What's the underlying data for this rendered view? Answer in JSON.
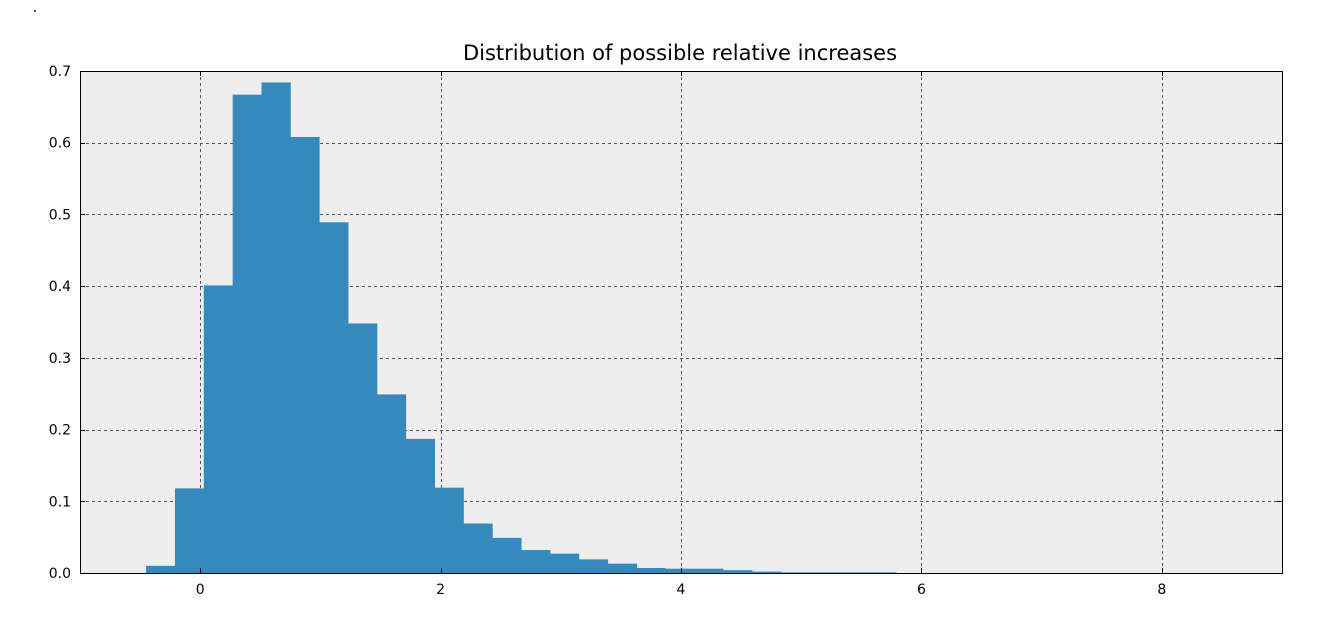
{
  "chart_data": {
    "type": "bar",
    "title": "Distribution of possible relative increases",
    "xlabel": "",
    "ylabel": "",
    "xlim": [
      -1,
      9
    ],
    "ylim": [
      0,
      0.7
    ],
    "xticks": [
      0,
      2,
      4,
      6,
      8
    ],
    "xtick_labels": [
      "0",
      "2",
      "4",
      "6",
      "8"
    ],
    "yticks": [
      0.0,
      0.1,
      0.2,
      0.3,
      0.4,
      0.5,
      0.6,
      0.7
    ],
    "ytick_labels": [
      "0.0",
      "0.1",
      "0.2",
      "0.3",
      "0.4",
      "0.5",
      "0.6",
      "0.7"
    ],
    "grid": true,
    "bar_color": "#348abd",
    "background_color": "#eeeeee",
    "bin_edges": [
      -0.45,
      -0.21,
      0.03,
      0.27,
      0.51,
      0.75,
      0.99,
      1.23,
      1.47,
      1.71,
      1.95,
      2.19,
      2.43,
      2.67,
      2.91,
      3.15,
      3.39,
      3.63,
      3.87,
      4.11,
      4.35,
      4.59,
      4.83,
      5.07,
      5.31,
      5.55,
      5.79
    ],
    "values": [
      0.01,
      0.118,
      0.401,
      0.667,
      0.684,
      0.608,
      0.489,
      0.348,
      0.249,
      0.187,
      0.119,
      0.069,
      0.049,
      0.032,
      0.027,
      0.019,
      0.013,
      0.007,
      0.006,
      0.006,
      0.004,
      0.002,
      0.001,
      0.001,
      0.001,
      0.001
    ]
  }
}
